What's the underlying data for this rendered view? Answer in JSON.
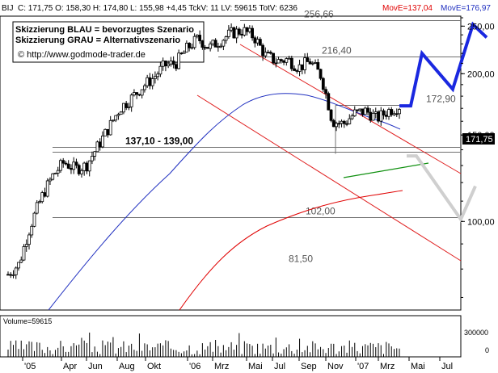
{
  "header": {
    "symbol": "BIJ",
    "stats": "C: 171,75 O: 158,30 H: 174,80 L: 155,98 +4,45 TckV: 11 LV: 59615 TotV: 6236",
    "mov1": "MovE=137,04",
    "mov2": "MovE=176,97",
    "mov1_color": "#e00000",
    "mov2_color": "#2030c0"
  },
  "legend": {
    "line1": "Skizzierung BLAU = bevorzugtes Szenario",
    "line2": "Skizzierung GRAU = Alternativszenario",
    "copyright": "© http://www.godmode-trader.de"
  },
  "volume_label": "Volume=59615",
  "current_price": "171,75",
  "chart_data": {
    "type": "candlestick",
    "title": "",
    "ylim": [
      66,
      262
    ],
    "y_ticks": [
      100,
      150,
      200,
      250
    ],
    "y_tick_labels": [
      "100,00",
      "150,00",
      "200,00",
      "250,00"
    ],
    "x_tick_labels": [
      "'05",
      "Apr",
      "Jun",
      "Aug",
      "Okt",
      "'06",
      "Mrz",
      "Mai",
      "Jul",
      "Sep",
      "Nov",
      "'07",
      "Mrz",
      "Mai",
      "Jul"
    ],
    "volume_ticks": [
      "300000",
      "0"
    ],
    "horizontal_levels": [
      {
        "value": 256.66,
        "label": "256,66"
      },
      {
        "value": 216.4,
        "label": "216,40"
      },
      {
        "value": 172.9,
        "label": "172,90"
      },
      {
        "value": 138.55,
        "label": "137,10 - 139,00"
      },
      {
        "value": 102.0,
        "label": "102,00"
      },
      {
        "value": 81.5,
        "label": "81,50"
      }
    ],
    "close_estimates": [
      78,
      82,
      98,
      112,
      124,
      132,
      128,
      130,
      142,
      155,
      170,
      178,
      188,
      196,
      208,
      210,
      225,
      236,
      226,
      234,
      242,
      245,
      238,
      218,
      212,
      214,
      206,
      212,
      198,
      160,
      158,
      166,
      168,
      162,
      168,
      171.75
    ],
    "series": [
      {
        "name": "MovE=137,04",
        "color": "#e00000"
      },
      {
        "name": "MovE=176,97",
        "color": "#2030c0"
      }
    ],
    "scenario_blue": [
      172,
      172,
      220,
      186,
      252,
      237
    ],
    "scenario_gray": [
      136,
      136,
      101,
      118
    ]
  }
}
